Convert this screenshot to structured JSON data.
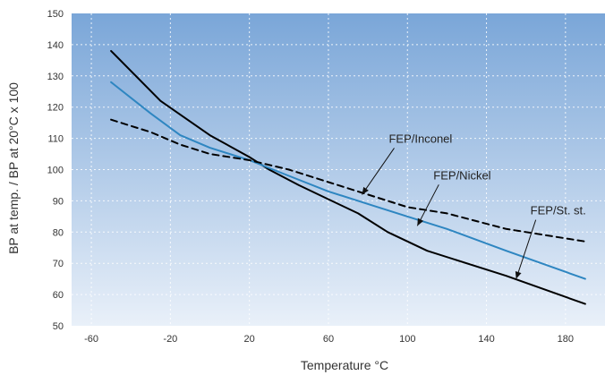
{
  "chart_data": {
    "type": "line",
    "xlabel": "Temperature °C",
    "ylabel": "BP at temp. / BP at 20°C x 100",
    "xlim": [
      -70,
      200
    ],
    "ylim": [
      50,
      150
    ],
    "xticks": [
      -60,
      -20,
      20,
      60,
      100,
      140,
      180
    ],
    "yticks": [
      50,
      60,
      70,
      80,
      90,
      100,
      110,
      120,
      130,
      140,
      150
    ],
    "grid": true,
    "series": [
      {
        "name": "FEP/St. st.",
        "color": "#000000",
        "style": "solid",
        "x": [
          -50,
          -25,
          0,
          20,
          30,
          45,
          55,
          75,
          90,
          110,
          150,
          190
        ],
        "y": [
          138,
          122,
          111,
          104,
          100,
          95,
          92,
          86,
          80,
          74,
          66,
          57
        ]
      },
      {
        "name": "FEP/Nickel",
        "color": "#2e86c1",
        "style": "solid",
        "x": [
          -50,
          -30,
          -15,
          0,
          20,
          40,
          60,
          80,
          100,
          120,
          150,
          190
        ],
        "y": [
          128,
          118,
          111,
          107,
          103,
          98,
          93,
          89,
          85,
          81,
          74,
          65
        ]
      },
      {
        "name": "FEP/Inconel",
        "color": "#000000",
        "style": "dashed",
        "x": [
          -50,
          -30,
          -15,
          0,
          20,
          40,
          60,
          80,
          100,
          120,
          150,
          190
        ],
        "y": [
          116,
          112,
          108,
          105,
          103,
          100,
          96,
          92,
          88,
          86,
          81,
          77
        ]
      }
    ],
    "annotations": [
      {
        "text": "FEP/Inconel",
        "x": 77,
        "y": 92
      },
      {
        "text": "FEP/Nickel",
        "x": 105,
        "y": 82
      },
      {
        "text": "FEP/St. st.",
        "x": 155,
        "y": 65
      }
    ],
    "background_gradient": [
      "#7aa6d8",
      "#e9f0f9"
    ]
  }
}
